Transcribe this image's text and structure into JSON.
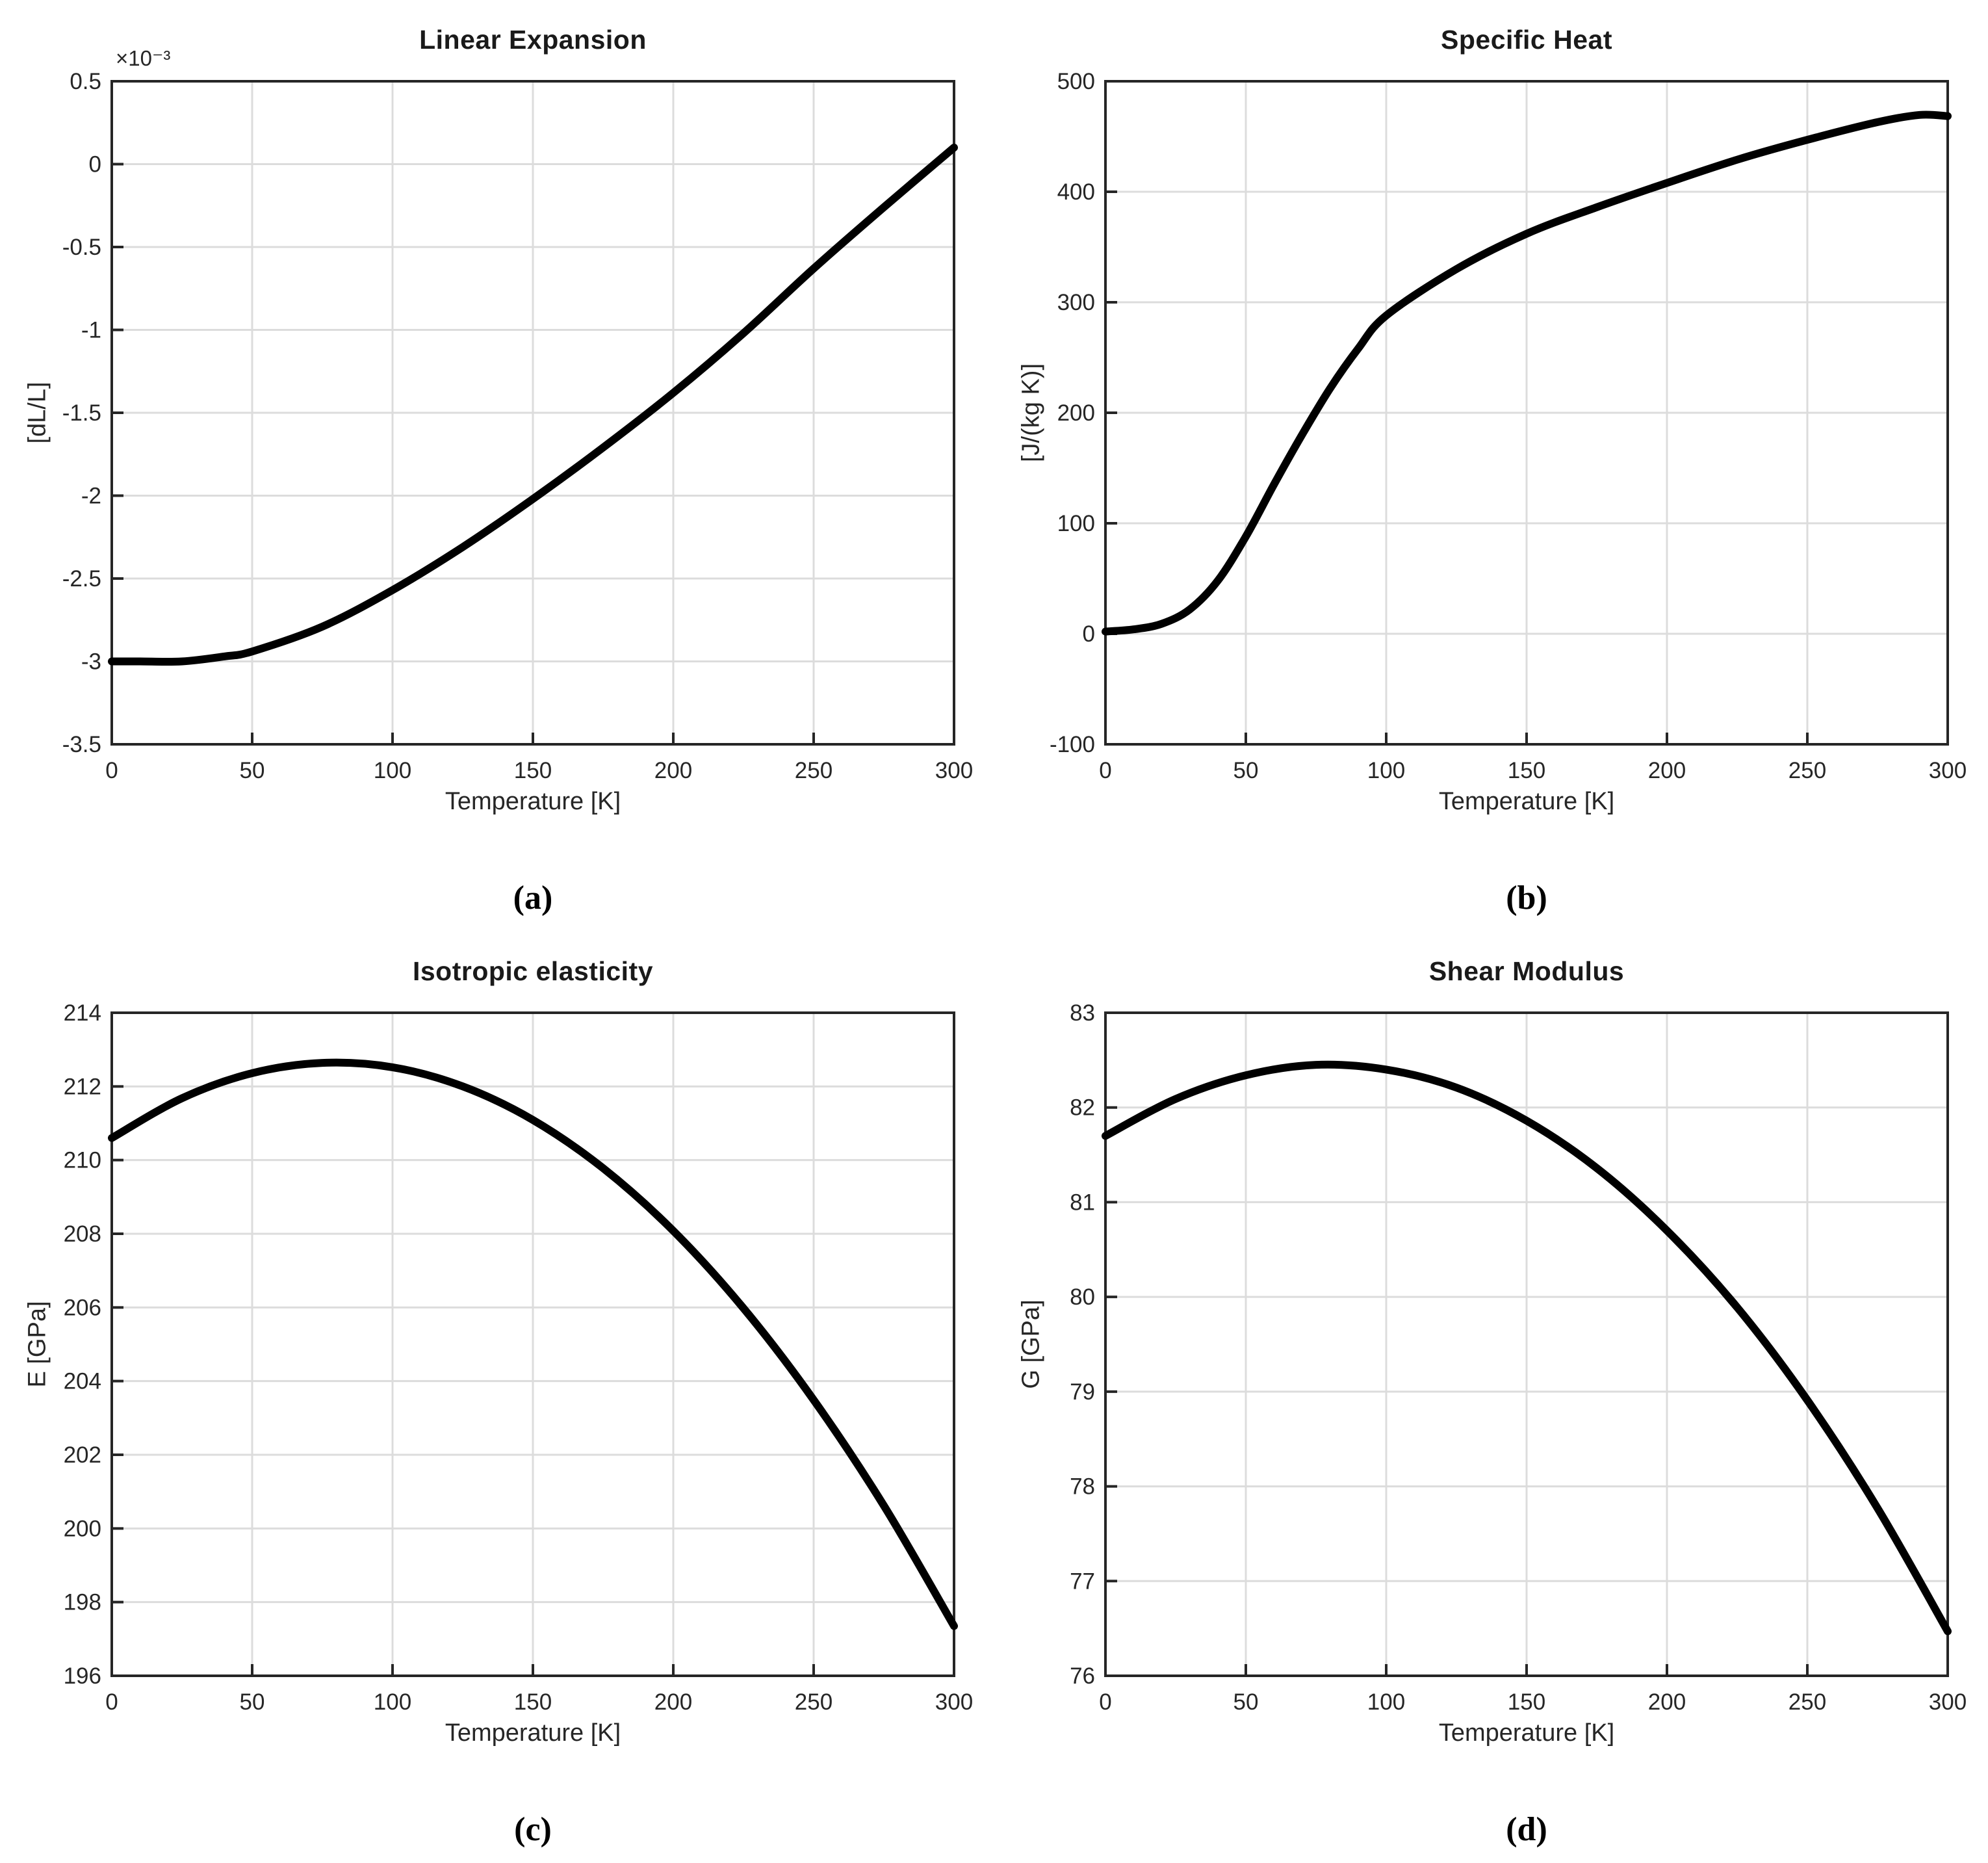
{
  "figure": {
    "background": "#ffffff",
    "curve_color": "#000000",
    "grid_color": "#dcdcdc",
    "axis_color": "#262626",
    "tick_label_color": "#262626",
    "shared_xlabel": "Temperature [K]"
  },
  "chart_data": [
    {
      "type": "line",
      "title": "Linear Expansion",
      "caption": "(a)",
      "xlabel": "Temperature [K]",
      "ylabel": "[dL/L]",
      "y_multiplier": "×10⁻³",
      "xlim": [
        0,
        300
      ],
      "ylim": [
        -3.5,
        0.5
      ],
      "xtick_vals": [
        0,
        50,
        100,
        150,
        200,
        250,
        300
      ],
      "xtick_labels": [
        "0",
        "50",
        "100",
        "150",
        "200",
        "250",
        "300"
      ],
      "ytick_vals": [
        0.5,
        0,
        -0.5,
        -1,
        -1.5,
        -2,
        -2.5,
        -3,
        -3.5
      ],
      "ytick_labels": [
        "0.5",
        "0",
        "-0.5",
        "-1",
        "-1.5",
        "-2",
        "-2.5",
        "-3",
        "-3.5"
      ],
      "grid": true,
      "legend": null,
      "x": [
        0,
        10,
        25,
        40,
        50,
        75,
        100,
        125,
        150,
        175,
        200,
        225,
        250,
        275,
        300
      ],
      "y": [
        -3.0,
        -3.0,
        -3.0,
        -2.97,
        -2.94,
        -2.79,
        -2.57,
        -2.31,
        -2.02,
        -1.71,
        -1.38,
        -1.02,
        -0.63,
        -0.26,
        0.1
      ],
      "y_units_note": "values in 1e-3 dL/L"
    },
    {
      "type": "line",
      "title": "Specific Heat",
      "caption": "(b)",
      "xlabel": "Temperature [K]",
      "ylabel": "[J/(kg K)]",
      "y_multiplier": null,
      "xlim": [
        0,
        300
      ],
      "ylim": [
        -100,
        500
      ],
      "xtick_vals": [
        0,
        50,
        100,
        150,
        200,
        250,
        300
      ],
      "xtick_labels": [
        "0",
        "50",
        "100",
        "150",
        "200",
        "250",
        "300"
      ],
      "ytick_vals": [
        500,
        400,
        300,
        200,
        100,
        0,
        -100
      ],
      "ytick_labels": [
        "500",
        "400",
        "300",
        "200",
        "100",
        "0",
        "-100"
      ],
      "grid": true,
      "legend": null,
      "x": [
        0,
        10,
        20,
        30,
        40,
        50,
        60,
        70,
        80,
        90,
        100,
        125,
        150,
        175,
        200,
        225,
        250,
        275,
        290,
        300
      ],
      "y": [
        2,
        4,
        9,
        22,
        48,
        88,
        135,
        180,
        222,
        258,
        288,
        330,
        362,
        386,
        408,
        429,
        447,
        463,
        469.5,
        468.5
      ]
    },
    {
      "type": "line",
      "title": "Isotropic elasticity",
      "caption": "(c)",
      "xlabel": "Temperature [K]",
      "ylabel": "E [GPa]",
      "y_multiplier": null,
      "xlim": [
        0,
        300
      ],
      "ylim": [
        196,
        214
      ],
      "xtick_vals": [
        0,
        50,
        100,
        150,
        200,
        250,
        300
      ],
      "xtick_labels": [
        "0",
        "50",
        "100",
        "150",
        "200",
        "250",
        "300"
      ],
      "ytick_vals": [
        214,
        212,
        210,
        208,
        206,
        204,
        202,
        200,
        198,
        196
      ],
      "ytick_labels": [
        "214",
        "212",
        "210",
        "208",
        "206",
        "204",
        "202",
        "200",
        "198",
        "196"
      ],
      "grid": true,
      "legend": null,
      "x": [
        0,
        25,
        50,
        75,
        100,
        125,
        150,
        175,
        200,
        225,
        250,
        275,
        300
      ],
      "y": [
        210.6,
        211.68,
        212.36,
        212.64,
        212.52,
        212.0,
        211.09,
        209.78,
        208.08,
        205.98,
        203.49,
        200.62,
        197.35
      ]
    },
    {
      "type": "line",
      "title": "Shear Modulus",
      "caption": "(d)",
      "xlabel": "Temperature [K]",
      "ylabel": "G [GPa]",
      "y_multiplier": null,
      "xlim": [
        0,
        300
      ],
      "ylim": [
        76,
        83
      ],
      "xtick_vals": [
        0,
        50,
        100,
        150,
        200,
        250,
        300
      ],
      "xtick_labels": [
        "0",
        "50",
        "100",
        "150",
        "200",
        "250",
        "300"
      ],
      "ytick_vals": [
        83,
        82,
        81,
        80,
        79,
        78,
        77,
        76
      ],
      "ytick_labels": [
        "83",
        "82",
        "81",
        "80",
        "79",
        "78",
        "77",
        "76"
      ],
      "grid": true,
      "legend": null,
      "x": [
        0,
        25,
        50,
        75,
        100,
        125,
        150,
        175,
        200,
        225,
        250,
        275,
        300
      ],
      "y": [
        81.7,
        82.09,
        82.34,
        82.45,
        82.4,
        82.21,
        81.86,
        81.36,
        80.7,
        79.89,
        78.91,
        77.77,
        76.47
      ]
    }
  ]
}
